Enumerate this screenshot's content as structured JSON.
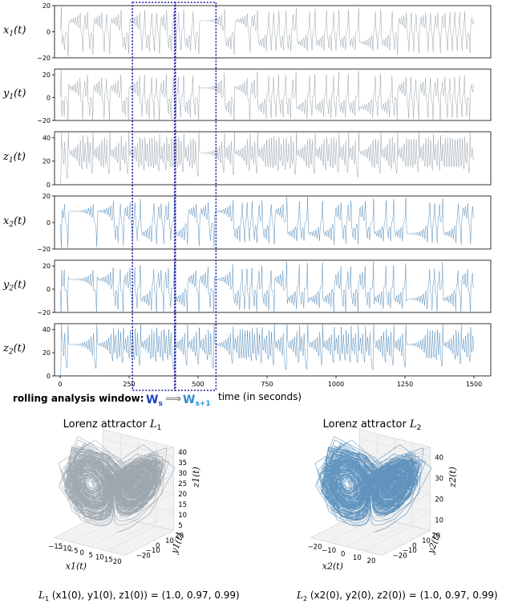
{
  "colors": {
    "gray": "#8e9aa3",
    "blue": "#4682b4",
    "window": "#1a1aa0",
    "bold_blue": "#1f3fbf",
    "light_blue": "#2f8fd0"
  },
  "chart_data": [
    {
      "type": "line",
      "title": "",
      "xlabel": "time (in seconds)",
      "x_ticks": [
        "0",
        "250",
        "500",
        "750",
        "1000",
        "1250",
        "1500"
      ],
      "xlim": [
        0,
        1500
      ],
      "series": [
        {
          "name": "x1(t)",
          "label_main": "x",
          "label_sub": "1",
          "label_tail": "(t)",
          "ylim": [
            -20,
            20
          ],
          "y_ticks": [
            "20",
            "0",
            "−20"
          ],
          "color": "#8e9aa3"
        },
        {
          "name": "y1(t)",
          "label_main": "y",
          "label_sub": "1",
          "label_tail": "(t)",
          "ylim": [
            -20,
            25
          ],
          "y_ticks": [
            "20",
            "0",
            "−20"
          ],
          "color": "#8e9aa3"
        },
        {
          "name": "z1(t)",
          "label_main": "z",
          "label_sub": "1",
          "label_tail": "(t)",
          "ylim": [
            0,
            45
          ],
          "y_ticks": [
            "40",
            "20",
            "0"
          ],
          "color": "#8e9aa3"
        },
        {
          "name": "x2(t)",
          "label_main": "x",
          "label_sub": "2",
          "label_tail": "(t)",
          "ylim": [
            -20,
            20
          ],
          "y_ticks": [
            "20",
            "0",
            "−20"
          ],
          "color": "#4682b4"
        },
        {
          "name": "y2(t)",
          "label_main": "y",
          "label_sub": "2",
          "label_tail": "(t)",
          "ylim": [
            -20,
            25
          ],
          "y_ticks": [
            "20",
            "0",
            "−20"
          ],
          "color": "#4682b4"
        },
        {
          "name": "z2(t)",
          "label_main": "z",
          "label_sub": "2",
          "label_tail": "(t)",
          "ylim": [
            0,
            45
          ],
          "y_ticks": [
            "40",
            "20",
            "0"
          ],
          "color": "#4682b4"
        }
      ],
      "window": {
        "label": "rolling analysis window:",
        "ws_main": "W",
        "ws_sub": "s",
        "ws1_main": "W",
        "ws1_sub": "s+1",
        "arrow": "⟹",
        "ws_range": [
          265,
          415
        ],
        "ws1_range": [
          415,
          565
        ]
      }
    },
    {
      "type": "scatter",
      "title_prefix": "Lorenz attractor ",
      "title_main": "L",
      "title_sub": "1",
      "color": "#8e9aa3",
      "x_ticks": [
        "−15",
        "−10",
        "−5",
        "0",
        "5",
        "10",
        "15",
        "20"
      ],
      "y_ticks": [
        "−20",
        "−10",
        "0",
        "10",
        "20"
      ],
      "z_ticks": [
        "40",
        "35",
        "30",
        "25",
        "20",
        "15",
        "10",
        "5"
      ],
      "xlabel": "x1(t)",
      "ylabel": "y1(t)",
      "zlabel": "z1(t)",
      "caption_main": "L",
      "caption_sub": "1",
      "caption_rest": " (x1(0), y1(0), z1(0)) = (1.0, 0.97, 0.99)"
    },
    {
      "type": "scatter",
      "title_prefix": "Lorenz attractor ",
      "title_main": "L",
      "title_sub": "2",
      "color": "#4682b4",
      "x_ticks": [
        "−20",
        "−10",
        "0",
        "10",
        "20"
      ],
      "y_ticks": [
        "−20",
        "−10",
        "0",
        "10",
        "20"
      ],
      "z_ticks": [
        "40",
        "30",
        "20",
        "10"
      ],
      "xlabel": "x2(t)",
      "ylabel": "y2(t)",
      "zlabel": "z2(t)",
      "caption_main": "L",
      "caption_sub": "2",
      "caption_rest": " (x2(0), y2(0), z2(0)) = (1.0, 0.97, 0.99)"
    }
  ]
}
